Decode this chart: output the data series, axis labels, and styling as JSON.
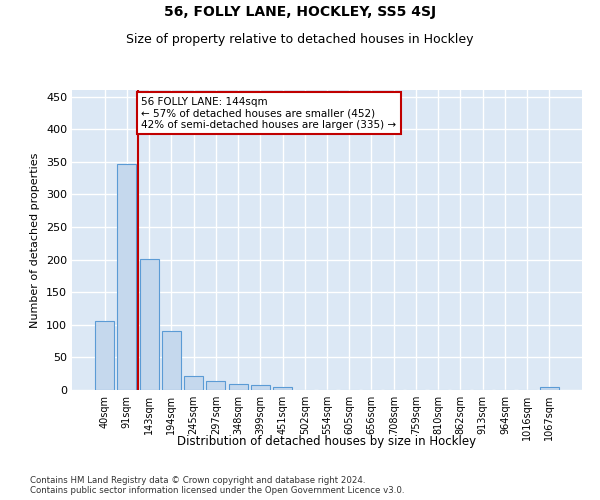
{
  "title": "56, FOLLY LANE, HOCKLEY, SS5 4SJ",
  "subtitle": "Size of property relative to detached houses in Hockley",
  "xlabel": "Distribution of detached houses by size in Hockley",
  "ylabel": "Number of detached properties",
  "categories": [
    "40sqm",
    "91sqm",
    "143sqm",
    "194sqm",
    "245sqm",
    "297sqm",
    "348sqm",
    "399sqm",
    "451sqm",
    "502sqm",
    "554sqm",
    "605sqm",
    "656sqm",
    "708sqm",
    "759sqm",
    "810sqm",
    "862sqm",
    "913sqm",
    "964sqm",
    "1016sqm",
    "1067sqm"
  ],
  "values": [
    106,
    347,
    201,
    90,
    22,
    14,
    9,
    8,
    5,
    0,
    0,
    0,
    0,
    0,
    0,
    0,
    0,
    0,
    0,
    0,
    4
  ],
  "bar_color": "#c5d8ed",
  "bar_edge_color": "#5b9bd5",
  "line_x_index": 1.5,
  "line_color": "#c00000",
  "annotation_text": "56 FOLLY LANE: 144sqm\n← 57% of detached houses are smaller (452)\n42% of semi-detached houses are larger (335) →",
  "annotation_box_color": "white",
  "annotation_box_edge": "#c00000",
  "ylim": [
    0,
    460
  ],
  "yticks": [
    0,
    50,
    100,
    150,
    200,
    250,
    300,
    350,
    400,
    450
  ],
  "background_color": "#dce8f5",
  "grid_color": "white",
  "title_fontsize": 10,
  "subtitle_fontsize": 9,
  "footer_text": "Contains HM Land Registry data © Crown copyright and database right 2024.\nContains public sector information licensed under the Open Government Licence v3.0."
}
